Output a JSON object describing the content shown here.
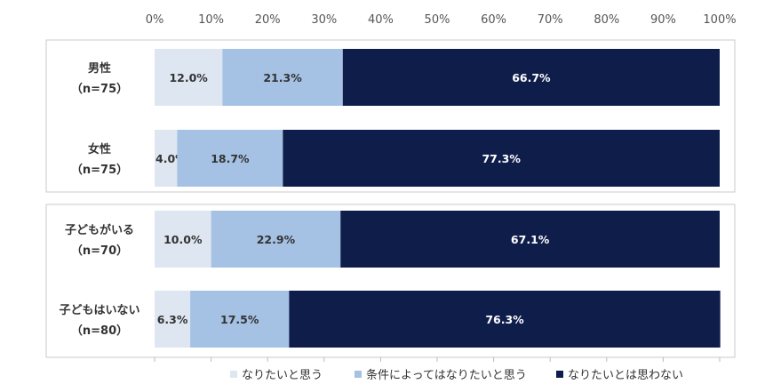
{
  "chart_data": {
    "type": "bar",
    "orientation": "horizontal",
    "stacked": true,
    "xlim": [
      0,
      100
    ],
    "x_ticks": [
      "0%",
      "10%",
      "20%",
      "30%",
      "40%",
      "50%",
      "60%",
      "70%",
      "80%",
      "90%",
      "100%"
    ],
    "groups": [
      {
        "categories": [
          {
            "name": "男性",
            "n": "（n=75）"
          },
          {
            "name": "女性",
            "n": "（n=75）"
          }
        ]
      },
      {
        "categories": [
          {
            "name": "子どもがいる",
            "n": "（n=70）"
          },
          {
            "name": "子どもはいない",
            "n": "（n=80）"
          }
        ]
      }
    ],
    "series": [
      {
        "name": "なりたいと思う",
        "color": "#dde6f1",
        "text_color": "#333333",
        "values": [
          12.0,
          4.0,
          10.0,
          6.3
        ],
        "labels": [
          "12.0%",
          "4.0%",
          "10.0%",
          "6.3%"
        ]
      },
      {
        "name": "条件によってはなりたいと思う",
        "color": "#a5c2e4",
        "text_color": "#333333",
        "values": [
          21.3,
          18.7,
          22.9,
          17.5
        ],
        "labels": [
          "21.3%",
          "18.7%",
          "22.9%",
          "17.5%"
        ]
      },
      {
        "name": "なりたいとは思わない",
        "color": "#0f1d4b",
        "text_color": "#ffffff",
        "values": [
          66.7,
          77.3,
          67.1,
          76.3
        ],
        "labels": [
          "66.7%",
          "77.3%",
          "67.1%",
          "76.3%"
        ]
      }
    ],
    "legend_position": "bottom",
    "grid": false
  }
}
